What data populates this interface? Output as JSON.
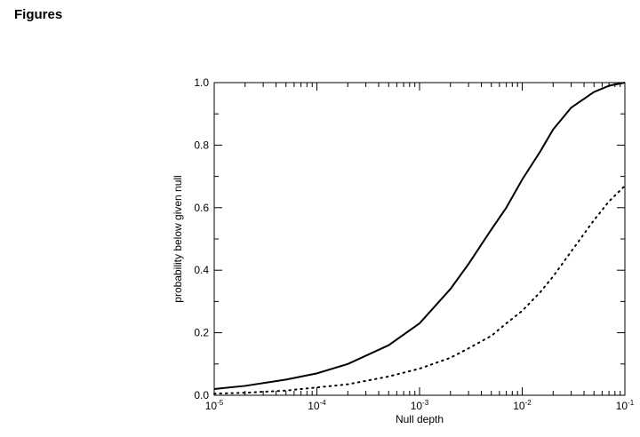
{
  "page": {
    "heading": "Figures"
  },
  "chart_data": {
    "type": "line",
    "title": "",
    "xlabel": "Null depth",
    "ylabel": "probability below given null",
    "xscale": "log",
    "xlim": [
      1e-05,
      0.1
    ],
    "ylim": [
      0,
      1
    ],
    "x_ticks": [
      {
        "value": 1e-05,
        "base": "10",
        "exp": "-5"
      },
      {
        "value": 0.0001,
        "base": "10",
        "exp": "-4"
      },
      {
        "value": 0.001,
        "base": "10",
        "exp": "-3"
      },
      {
        "value": 0.01,
        "base": "10",
        "exp": "-2"
      },
      {
        "value": 0.1,
        "base": "10",
        "exp": "-1"
      }
    ],
    "y_ticks": [
      {
        "value": 0.0,
        "label": "0.0"
      },
      {
        "value": 0.2,
        "label": "0.2"
      },
      {
        "value": 0.4,
        "label": "0.4"
      },
      {
        "value": 0.6,
        "label": "0.6"
      },
      {
        "value": 0.8,
        "label": "0.8"
      },
      {
        "value": 1.0,
        "label": "1.0"
      }
    ],
    "grid": false,
    "legend": "none",
    "series": [
      {
        "style": "solid",
        "color": "#000000",
        "x": [
          1e-05,
          2e-05,
          5e-05,
          0.0001,
          0.0002,
          0.0005,
          0.001,
          0.002,
          0.003,
          0.005,
          0.007,
          0.01,
          0.015,
          0.02,
          0.03,
          0.05,
          0.07,
          0.1
        ],
        "y": [
          0.02,
          0.03,
          0.05,
          0.07,
          0.1,
          0.16,
          0.23,
          0.34,
          0.42,
          0.53,
          0.6,
          0.69,
          0.78,
          0.85,
          0.92,
          0.97,
          0.99,
          1.0
        ]
      },
      {
        "style": "dotted",
        "color": "#000000",
        "x": [
          1e-05,
          2e-05,
          5e-05,
          0.0001,
          0.0002,
          0.0005,
          0.001,
          0.002,
          0.003,
          0.005,
          0.007,
          0.01,
          0.015,
          0.02,
          0.03,
          0.05,
          0.07,
          0.1
        ],
        "y": [
          0.005,
          0.008,
          0.015,
          0.025,
          0.035,
          0.06,
          0.085,
          0.12,
          0.15,
          0.19,
          0.23,
          0.27,
          0.33,
          0.38,
          0.46,
          0.56,
          0.62,
          0.67
        ]
      }
    ]
  }
}
